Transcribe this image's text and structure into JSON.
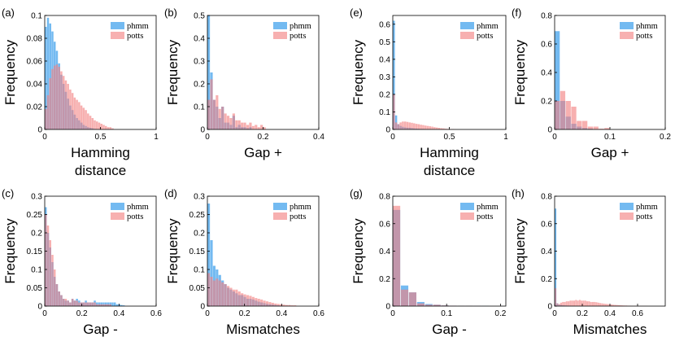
{
  "colors": {
    "phmm": "#5aaeee",
    "potts": "#f28080",
    "overlap": "#9a5a9a"
  },
  "chart_data": [
    {
      "id": "a",
      "label": "(a)",
      "type": "bar",
      "xlabel": "Hamming",
      "xlabel2": "distance",
      "ylabel": "Frequency",
      "xlim": [
        0,
        1
      ],
      "ylim": [
        0,
        0.1
      ],
      "xticks": [
        "0",
        "0.5",
        "1"
      ],
      "yticks": [
        "0",
        "0.02",
        "0.04",
        "0.06",
        "0.08",
        "0.1"
      ],
      "bin_width": 0.02,
      "bin_start": 0.0,
      "series": [
        {
          "name": "phmm",
          "values": [
            0.09,
            0.098,
            0.093,
            0.086,
            0.077,
            0.069,
            0.058,
            0.048,
            0.04,
            0.033,
            0.027,
            0.021,
            0.017,
            0.013,
            0.01,
            0.008,
            0.006,
            0.004,
            0.003,
            0.002,
            0.0015,
            0.001,
            0.0005,
            0.0003,
            0.0002
          ]
        },
        {
          "name": "potts",
          "values": [
            0.018,
            0.03,
            0.045,
            0.053,
            0.056,
            0.057,
            0.055,
            0.051,
            0.047,
            0.043,
            0.04,
            0.035,
            0.032,
            0.028,
            0.026,
            0.024,
            0.021,
            0.019,
            0.017,
            0.014,
            0.012,
            0.01,
            0.008,
            0.007,
            0.006,
            0.005,
            0.004,
            0.003,
            0.002,
            0.002,
            0.001
          ]
        }
      ],
      "legend": "top-right"
    },
    {
      "id": "b",
      "label": "(b)",
      "type": "bar",
      "xlabel": "Gap +",
      "ylabel": "Frequency",
      "xlim": [
        0,
        0.4
      ],
      "ylim": [
        0,
        0.5
      ],
      "xticks": [
        "0",
        "0.2",
        "0.4"
      ],
      "yticks": [
        "0",
        "0.1",
        "0.2",
        "0.3",
        "0.4",
        "0.5"
      ],
      "bin_width": 0.01,
      "bin_start": 0.0,
      "series": [
        {
          "name": "phmm",
          "values": [
            0.5,
            0.25,
            0.13,
            0.1,
            0.05,
            0.1,
            0.03,
            0.03,
            0.02,
            0.06,
            0.01,
            0.02,
            0.01,
            0.01,
            0.005,
            0.01
          ]
        },
        {
          "name": "potts",
          "values": [
            0.13,
            0.22,
            0.13,
            0.15,
            0.09,
            0.1,
            0.07,
            0.06,
            0.05,
            0.07,
            0.04,
            0.04,
            0.03,
            0.03,
            0.02,
            0.03,
            0.015,
            0.02,
            0.01,
            0.02,
            0.01
          ]
        }
      ],
      "legend": "top-right"
    },
    {
      "id": "e",
      "label": "(e)",
      "type": "bar",
      "xlabel": "Hamming",
      "xlabel2": "distance",
      "ylabel": "Frequency",
      "xlim": [
        0,
        1
      ],
      "ylim": [
        0,
        0.65
      ],
      "xticks": [
        "0",
        "0.5",
        "1"
      ],
      "yticks": [
        "0",
        "0.1",
        "0.2",
        "0.3",
        "0.4",
        "0.5",
        "0.6"
      ],
      "bin_width": 0.02,
      "bin_start": 0.0,
      "series": [
        {
          "name": "phmm",
          "values": [
            0.62,
            0.08,
            0.03,
            0.02,
            0.015,
            0.012,
            0.01,
            0.01,
            0.008,
            0.006,
            0.005,
            0.004,
            0.003,
            0.003,
            0.002,
            0.002,
            0.001,
            0.001
          ]
        },
        {
          "name": "potts",
          "values": [
            0.2,
            0.04,
            0.03,
            0.04,
            0.045,
            0.045,
            0.043,
            0.04,
            0.038,
            0.035,
            0.032,
            0.03,
            0.027,
            0.025,
            0.022,
            0.02,
            0.018,
            0.016,
            0.013,
            0.011,
            0.009,
            0.007,
            0.006,
            0.004,
            0.003,
            0.002,
            0.002,
            0.001
          ]
        }
      ],
      "legend": "top-right"
    },
    {
      "id": "f",
      "label": "(f)",
      "type": "bar",
      "xlabel": "Gap +",
      "ylabel": "Frequency",
      "xlim": [
        0,
        0.2
      ],
      "ylim": [
        0,
        0.8
      ],
      "xticks": [
        "0",
        "0.1",
        "0.2"
      ],
      "yticks": [
        "0",
        "0.2",
        "0.4",
        "0.6",
        "0.8"
      ],
      "bin_width": 0.01,
      "bin_start": 0.0,
      "series": [
        {
          "name": "phmm",
          "values": [
            0.69,
            0.2,
            0.09,
            0.04,
            0.02,
            0.01,
            0.005
          ]
        },
        {
          "name": "potts",
          "values": [
            0.2,
            0.27,
            0.2,
            0.16,
            0.06,
            0.06,
            0.02,
            0.02,
            0.005,
            0.01
          ]
        }
      ],
      "legend": "top-right"
    },
    {
      "id": "c",
      "label": "(c)",
      "type": "bar",
      "xlabel": "Gap -",
      "ylabel": "Frequency",
      "xlim": [
        0,
        0.6
      ],
      "ylim": [
        0,
        0.3
      ],
      "xticks": [
        "0",
        "0.2",
        "0.4",
        "0.6"
      ],
      "yticks": [
        "0",
        "0.05",
        "0.1",
        "0.15",
        "0.2",
        "0.25",
        "0.3"
      ],
      "bin_width": 0.012,
      "bin_start": 0.0,
      "series": [
        {
          "name": "phmm",
          "values": [
            0.27,
            0.2,
            0.16,
            0.12,
            0.08,
            0.06,
            0.04,
            0.03,
            0.02,
            0.015,
            0.015,
            0.01,
            0.02,
            0.015,
            0.02,
            0.015,
            0.01,
            0.01,
            0.015,
            0.01,
            0.01,
            0.01,
            0.015,
            0.01,
            0.01,
            0.01,
            0.01,
            0.01,
            0.01,
            0.01,
            0.01,
            0.01,
            0.005,
            0.005,
            0.003,
            0.002
          ]
        },
        {
          "name": "potts",
          "values": [
            0.25,
            0.22,
            0.18,
            0.14,
            0.1,
            0.06,
            0.04,
            0.03,
            0.02,
            0.02,
            0.015,
            0.01,
            0.02,
            0.015,
            0.015,
            0.01,
            0.01,
            0.01,
            0.01,
            0.01,
            0.01,
            0.01,
            0.01,
            0.005,
            0.005,
            0.005,
            0.005,
            0.005,
            0.005,
            0.005
          ]
        }
      ],
      "legend": "top-right"
    },
    {
      "id": "d",
      "label": "(d)",
      "type": "bar",
      "xlabel": "Mismatches",
      "ylabel": "Frequency",
      "xlim": [
        0,
        0.6
      ],
      "ylim": [
        0,
        0.3
      ],
      "xticks": [
        "0",
        "0.2",
        "0.4",
        "0.6"
      ],
      "yticks": [
        "0",
        "0.05",
        "0.1",
        "0.15",
        "0.2",
        "0.25",
        "0.3"
      ],
      "bin_width": 0.015,
      "bin_start": 0.0,
      "series": [
        {
          "name": "phmm",
          "values": [
            0.28,
            0.18,
            0.11,
            0.1,
            0.085,
            0.07,
            0.06,
            0.05,
            0.045,
            0.04,
            0.035,
            0.03,
            0.03,
            0.025,
            0.02,
            0.02,
            0.018,
            0.015,
            0.012,
            0.01,
            0.008,
            0.006,
            0.005,
            0.004,
            0.003,
            0.002
          ]
        },
        {
          "name": "potts",
          "values": [
            0.09,
            0.08,
            0.07,
            0.075,
            0.07,
            0.065,
            0.06,
            0.055,
            0.05,
            0.045,
            0.045,
            0.04,
            0.035,
            0.032,
            0.03,
            0.028,
            0.025,
            0.022,
            0.02,
            0.018,
            0.015,
            0.013,
            0.011,
            0.009,
            0.007,
            0.006,
            0.005,
            0.004,
            0.003,
            0.003,
            0.002,
            0.002
          ]
        }
      ],
      "legend": "top-right"
    },
    {
      "id": "g",
      "label": "(g)",
      "type": "bar",
      "xlabel": "Gap -",
      "ylabel": "Frequency",
      "xlim": [
        0,
        0.21
      ],
      "ylim": [
        0,
        0.8
      ],
      "xticks": [
        "0",
        "0.1",
        "0.2"
      ],
      "yticks": [
        "0",
        "0.2",
        "0.4",
        "0.6",
        "0.8"
      ],
      "bin_width": 0.015,
      "bin_start": 0.0,
      "series": [
        {
          "name": "phmm",
          "values": [
            0.7,
            0.15,
            0.1,
            0.03,
            0.015,
            0.01,
            0.005,
            0.003,
            0.002,
            0.002,
            0.001,
            0.001
          ]
        },
        {
          "name": "potts",
          "values": [
            0.73,
            0.12,
            0.1,
            0.02,
            0.01,
            0.01,
            0.005,
            0.003,
            0.002,
            0.002,
            0.001
          ]
        }
      ],
      "legend": "top-right"
    },
    {
      "id": "h",
      "label": "(h)",
      "type": "bar",
      "xlabel": "Mismatches",
      "ylabel": "Frequency",
      "xlim": [
        0,
        0.8
      ],
      "ylim": [
        0,
        0.8
      ],
      "xticks": [
        "0",
        "0.2",
        "0.4",
        "0.6"
      ],
      "yticks": [
        "0",
        "0.2",
        "0.4",
        "0.6",
        "0.8"
      ],
      "bin_width": 0.0135,
      "bin_start": 0.0,
      "series": [
        {
          "name": "phmm",
          "values": [
            0.71,
            0.02,
            0.01,
            0.008,
            0.006,
            0.005,
            0.004,
            0.003,
            0.002,
            0.002,
            0.001
          ]
        },
        {
          "name": "potts",
          "values": [
            0.13,
            0.02,
            0.015,
            0.025,
            0.03,
            0.03,
            0.035,
            0.035,
            0.04,
            0.04,
            0.04,
            0.045,
            0.04,
            0.045,
            0.04,
            0.04,
            0.04,
            0.035,
            0.035,
            0.03,
            0.03,
            0.03,
            0.028,
            0.025,
            0.022,
            0.02,
            0.018,
            0.016,
            0.015,
            0.013,
            0.012,
            0.01,
            0.009,
            0.008,
            0.007,
            0.006,
            0.005,
            0.004,
            0.004,
            0.003,
            0.003,
            0.002,
            0.002,
            0.002,
            0.001,
            0.001,
            0.001,
            0.001,
            0.001,
            0.001
          ]
        }
      ],
      "legend": "top-right"
    }
  ]
}
